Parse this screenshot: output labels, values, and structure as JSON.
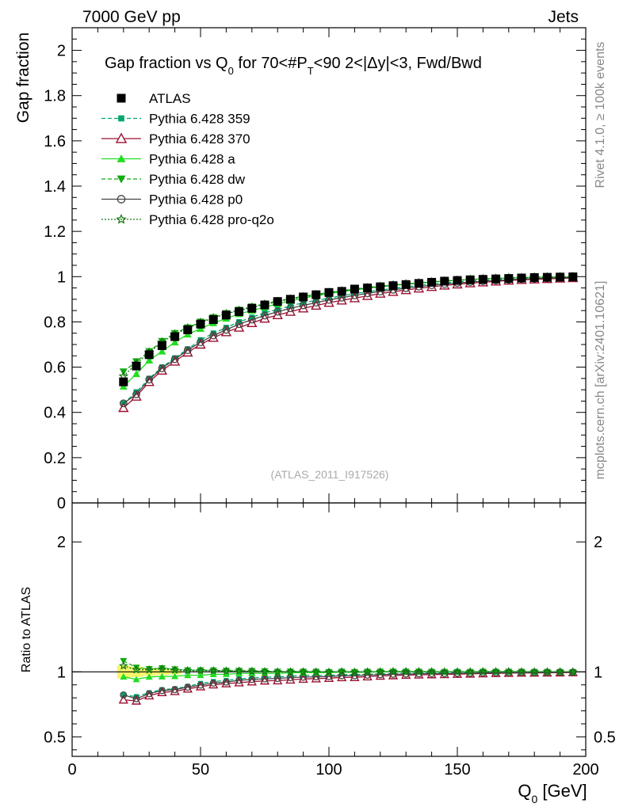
{
  "header": {
    "left": "7000 GeV pp",
    "right": "Jets"
  },
  "side_labels": {
    "rivet": "Rivet 4.1.0, ≥ 100k events",
    "mcplots": "mcplots.cern.ch [arXiv:2401.10621]"
  },
  "colors": {
    "atlas": "#000000",
    "p359": "#00a86b",
    "p370": "#9b1030",
    "pa": "#22dd22",
    "pdw": "#11aa11",
    "pp0": "#444444",
    "pq2o": "#117711",
    "band": "#f5f56a"
  },
  "chart_data": [
    {
      "type": "line",
      "panel": "main",
      "title": "Gap fraction vs Q",
      "title_sub": "0",
      "title_cut_a": " for 70<#P",
      "title_cut_sub": "T",
      "title_cut_b": "<90  2<|Δy|<3, Fwd/Bwd",
      "watermark": "(ATLAS_2011_I917526)",
      "ylabel": "Gap fraction",
      "xlim": [
        0,
        200
      ],
      "ylim": [
        0,
        2.1
      ],
      "yticks": [
        0,
        0.2,
        0.4,
        0.6,
        0.8,
        1,
        1.2,
        1.4,
        1.6,
        1.8,
        2
      ],
      "ytick_labels": [
        "0",
        "0.2",
        "0.4",
        "0.6",
        "0.8",
        "1",
        "1.2",
        "1.4",
        "1.6",
        "1.8",
        "2"
      ],
      "x": [
        20,
        25,
        30,
        35,
        40,
        45,
        50,
        55,
        60,
        65,
        70,
        75,
        80,
        85,
        90,
        95,
        100,
        105,
        110,
        115,
        120,
        125,
        130,
        135,
        140,
        145,
        150,
        155,
        160,
        165,
        170,
        175,
        180,
        185,
        190,
        195
      ],
      "series": [
        {
          "name": "ATLAS",
          "key": "atlas",
          "marker": "square",
          "values": [
            0.535,
            0.605,
            0.655,
            0.695,
            0.735,
            0.765,
            0.79,
            0.81,
            0.83,
            0.845,
            0.86,
            0.875,
            0.89,
            0.9,
            0.91,
            0.92,
            0.93,
            0.935,
            0.945,
            0.95,
            0.955,
            0.96,
            0.965,
            0.97,
            0.975,
            0.98,
            0.983,
            0.986,
            0.988,
            0.99,
            0.992,
            0.994,
            0.996,
            0.997,
            0.998,
            0.999
          ]
        },
        {
          "name": "Pythia 6.428 359",
          "key": "p359",
          "marker": "small-square",
          "line": "dashed",
          "values": [
            0.44,
            0.49,
            0.55,
            0.6,
            0.64,
            0.68,
            0.72,
            0.75,
            0.775,
            0.8,
            0.82,
            0.84,
            0.855,
            0.87,
            0.885,
            0.895,
            0.905,
            0.915,
            0.925,
            0.933,
            0.94,
            0.948,
            0.955,
            0.962,
            0.967,
            0.972,
            0.976,
            0.98,
            0.984,
            0.987,
            0.99,
            0.992,
            0.994,
            0.996,
            0.997,
            0.998
          ]
        },
        {
          "name": "Pythia 6.428 370",
          "key": "p370",
          "marker": "open-triangle",
          "line": "solid",
          "values": [
            0.42,
            0.47,
            0.535,
            0.585,
            0.625,
            0.665,
            0.7,
            0.73,
            0.755,
            0.775,
            0.795,
            0.815,
            0.83,
            0.845,
            0.86,
            0.872,
            0.885,
            0.895,
            0.905,
            0.915,
            0.925,
            0.933,
            0.941,
            0.948,
            0.955,
            0.961,
            0.966,
            0.971,
            0.975,
            0.979,
            0.983,
            0.986,
            0.988,
            0.99,
            0.992,
            0.994
          ]
        },
        {
          "name": "Pythia 6.428 a",
          "key": "pa",
          "marker": "triangle",
          "line": "solid",
          "values": [
            0.515,
            0.57,
            0.63,
            0.67,
            0.71,
            0.745,
            0.77,
            0.795,
            0.815,
            0.835,
            0.85,
            0.865,
            0.88,
            0.893,
            0.905,
            0.915,
            0.925,
            0.933,
            0.941,
            0.948,
            0.955,
            0.961,
            0.966,
            0.971,
            0.976,
            0.98,
            0.984,
            0.987,
            0.99,
            0.992,
            0.994,
            0.996,
            0.997,
            0.998,
            0.999,
            0.999
          ]
        },
        {
          "name": "Pythia 6.428 dw",
          "key": "pdw",
          "marker": "down-triangle",
          "line": "dashed",
          "values": [
            0.58,
            0.625,
            0.67,
            0.715,
            0.75,
            0.775,
            0.8,
            0.82,
            0.838,
            0.853,
            0.867,
            0.88,
            0.892,
            0.903,
            0.913,
            0.922,
            0.93,
            0.938,
            0.945,
            0.952,
            0.958,
            0.963,
            0.968,
            0.973,
            0.977,
            0.981,
            0.984,
            0.987,
            0.99,
            0.992,
            0.994,
            0.996,
            0.997,
            0.998,
            0.999,
            0.999
          ]
        },
        {
          "name": "Pythia 6.428 p0",
          "key": "pp0",
          "marker": "open-circle",
          "line": "solid",
          "values": [
            0.44,
            0.48,
            0.545,
            0.595,
            0.635,
            0.675,
            0.71,
            0.74,
            0.765,
            0.79,
            0.81,
            0.828,
            0.845,
            0.86,
            0.873,
            0.885,
            0.897,
            0.907,
            0.917,
            0.926,
            0.934,
            0.942,
            0.949,
            0.956,
            0.962,
            0.967,
            0.972,
            0.976,
            0.98,
            0.983,
            0.986,
            0.989,
            0.991,
            0.993,
            0.995,
            0.996
          ]
        },
        {
          "name": "Pythia 6.428 pro-q2o",
          "key": "pq2o",
          "marker": "star",
          "line": "dotted",
          "values": [
            0.56,
            0.615,
            0.665,
            0.71,
            0.745,
            0.772,
            0.797,
            0.817,
            0.835,
            0.85,
            0.864,
            0.877,
            0.889,
            0.9,
            0.91,
            0.919,
            0.928,
            0.936,
            0.943,
            0.95,
            0.956,
            0.962,
            0.967,
            0.972,
            0.976,
            0.98,
            0.984,
            0.987,
            0.99,
            0.992,
            0.994,
            0.995,
            0.997,
            0.998,
            0.999,
            0.999
          ]
        }
      ]
    },
    {
      "type": "line",
      "panel": "ratio",
      "ylabel": "Ratio to ATLAS",
      "xlabel": "Q",
      "xlabel_sub": "0",
      "xlabel_unit": " [GeV]",
      "xlim": [
        0,
        200
      ],
      "ylim": [
        0.35,
        2.3
      ],
      "xticks": [
        0,
        50,
        100,
        150,
        200
      ],
      "xtick_labels": [
        "0",
        "50",
        "100",
        "150",
        "200"
      ],
      "yticks": [
        0.5,
        1,
        2
      ],
      "ytick_labels": [
        "0.5",
        "1",
        "2"
      ],
      "reference": 1,
      "uncertainty_band": {
        "x": [
          20,
          25,
          30,
          35,
          40
        ],
        "half_width": [
          0.05,
          0.04,
          0.03,
          0.025,
          0.02
        ]
      }
    }
  ]
}
